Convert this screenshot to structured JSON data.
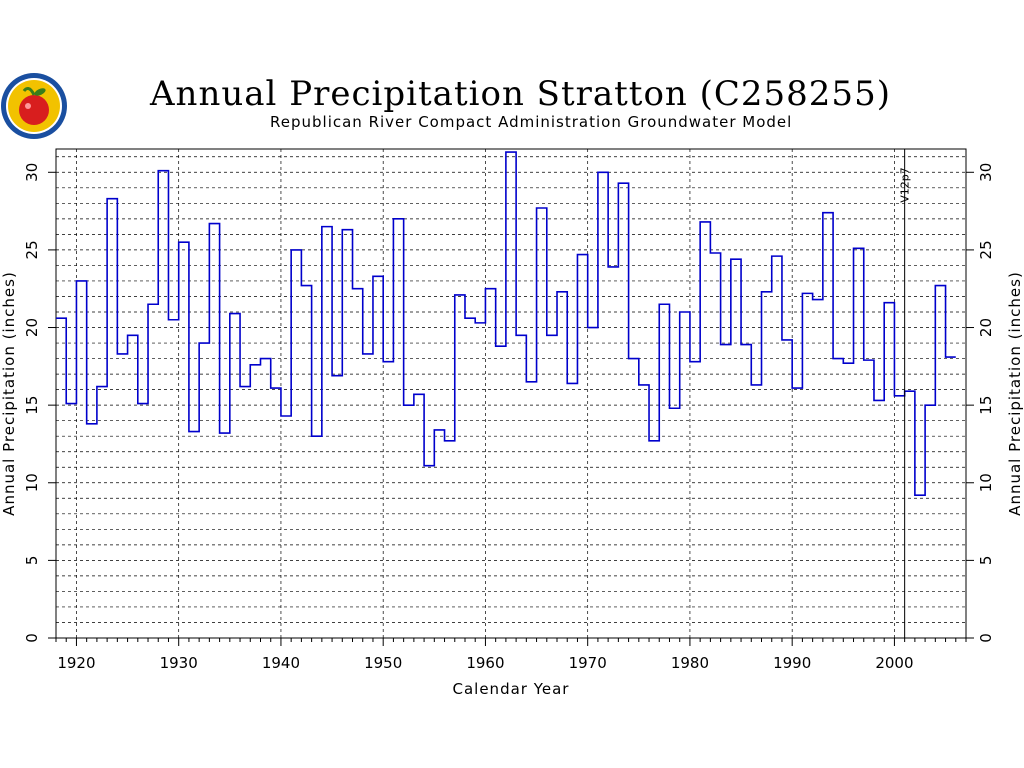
{
  "chart_data": {
    "type": "line",
    "style": "step",
    "title": "Annual Precipitation Stratton (C258255)",
    "subtitle": "Republican River Compact Administration Groundwater Model",
    "xlabel": "Calendar Year",
    "ylabel": "Annual Precipitation (inches)",
    "ylabel_right": "Annual Precipitation (inches)",
    "xlim": [
      1918,
      2007
    ],
    "ylim": [
      0,
      31.5
    ],
    "x_ticks": [
      1920,
      1930,
      1940,
      1950,
      1960,
      1970,
      1980,
      1990,
      2000
    ],
    "y_ticks": [
      0,
      5,
      10,
      15,
      20,
      25,
      30
    ],
    "y_minor_step": 1,
    "grid": true,
    "line_color": "#0000cc",
    "annotation": {
      "text": "V12p7",
      "x": 2001
    },
    "x": [
      1918,
      1919,
      1920,
      1921,
      1922,
      1923,
      1924,
      1925,
      1926,
      1927,
      1928,
      1929,
      1930,
      1931,
      1932,
      1933,
      1934,
      1935,
      1936,
      1937,
      1938,
      1939,
      1940,
      1941,
      1942,
      1943,
      1944,
      1945,
      1946,
      1947,
      1948,
      1949,
      1950,
      1951,
      1952,
      1953,
      1954,
      1955,
      1956,
      1957,
      1958,
      1959,
      1960,
      1961,
      1962,
      1963,
      1964,
      1965,
      1966,
      1967,
      1968,
      1969,
      1970,
      1971,
      1972,
      1973,
      1974,
      1975,
      1976,
      1977,
      1978,
      1979,
      1980,
      1981,
      1982,
      1983,
      1984,
      1985,
      1986,
      1987,
      1988,
      1989,
      1990,
      1991,
      1992,
      1993,
      1994,
      1995,
      1996,
      1997,
      1998,
      1999,
      2000,
      2001,
      2002,
      2003,
      2004,
      2005
    ],
    "values": [
      20.6,
      15.1,
      23.0,
      13.8,
      16.2,
      28.3,
      18.3,
      19.5,
      15.1,
      21.5,
      30.1,
      20.5,
      25.5,
      13.3,
      19.0,
      26.7,
      13.2,
      20.9,
      16.2,
      17.6,
      18.0,
      16.1,
      14.3,
      25.0,
      22.7,
      13.0,
      26.5,
      16.9,
      26.3,
      22.5,
      18.3,
      23.3,
      17.8,
      27.0,
      15.0,
      15.7,
      11.1,
      13.4,
      12.7,
      22.1,
      20.6,
      20.3,
      22.5,
      18.8,
      31.3,
      19.5,
      16.5,
      27.7,
      19.5,
      22.3,
      16.4,
      24.7,
      20.0,
      30.0,
      23.9,
      29.3,
      18.0,
      16.3,
      12.7,
      21.5,
      14.8,
      21.0,
      17.8,
      26.8,
      24.8,
      18.9,
      24.4,
      18.9,
      16.3,
      22.3,
      24.6,
      19.2,
      16.1,
      22.2,
      21.8,
      27.4,
      18.0,
      17.7,
      25.1,
      17.9,
      15.3,
      21.6,
      15.6,
      15.9,
      9.2,
      15.0,
      22.7,
      18.1
    ]
  },
  "logo": {
    "name": "agency-seal"
  }
}
